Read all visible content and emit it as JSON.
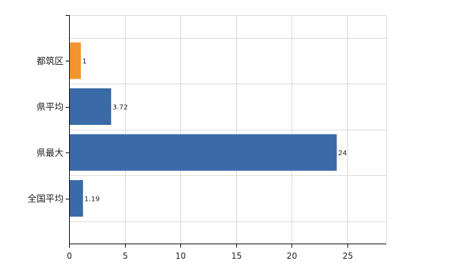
{
  "chart_data": {
    "type": "bar",
    "orientation": "horizontal",
    "categories": [
      "都筑区",
      "県平均",
      "県最大",
      "全国平均"
    ],
    "values": [
      1,
      3.72,
      24,
      1.19
    ],
    "data_labels": [
      "1",
      "3.72",
      "24",
      "1.19"
    ],
    "bar_colors": [
      "#f0952f",
      "#3a6ba8",
      "#3a6ba8",
      "#3a6ba8"
    ],
    "xlim": [
      0,
      28.5
    ],
    "xticks": [
      0,
      5,
      10,
      15,
      20,
      25
    ],
    "xtick_labels": [
      "0",
      "5",
      "10",
      "15",
      "20",
      "25"
    ],
    "grid": true,
    "title": "",
    "xlabel": "",
    "ylabel": ""
  }
}
